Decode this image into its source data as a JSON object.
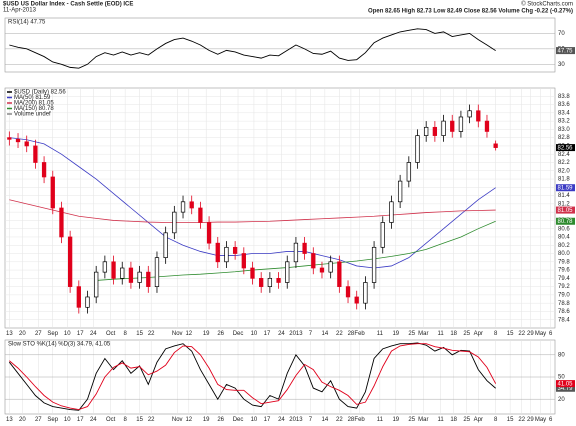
{
  "header": {
    "title": "$USD US Dollar Index - Cash Settle (EOD) ICE",
    "date": "11-Apr-2013",
    "source": "© StockCharts.com",
    "ohlc": "Open 82.65  High 82.73  Low 82.49  Close 82.56  Volume   Chg -0.22 (-0.27%)"
  },
  "chart_data": [
    {
      "type": "line",
      "title": "RSI(14) 47.75",
      "x": [
        0,
        3,
        6,
        9,
        12,
        15,
        18,
        21,
        24,
        27,
        30,
        33,
        36,
        39,
        42,
        45,
        48,
        51,
        54,
        57,
        60,
        63,
        66,
        69,
        72,
        75,
        78,
        81,
        84,
        87,
        90,
        93,
        96,
        99,
        102,
        105,
        108,
        111,
        114,
        117,
        120,
        123,
        126,
        129,
        132,
        135,
        138,
        141,
        144,
        147,
        150,
        153,
        156,
        159,
        162,
        165,
        168
      ],
      "series": [
        {
          "color": "#000000",
          "values": [
            55,
            52,
            50,
            45,
            40,
            33,
            30,
            26,
            25,
            30,
            40,
            45,
            42,
            46,
            42,
            45,
            42,
            50,
            57,
            62,
            64,
            60,
            55,
            48,
            43,
            48,
            46,
            42,
            40,
            38,
            42,
            41,
            48,
            55,
            50,
            44,
            43,
            47,
            38,
            35,
            36,
            45,
            58,
            64,
            68,
            72,
            74,
            76,
            75,
            70,
            72,
            66,
            68,
            70,
            62,
            55,
            47.75
          ]
        }
      ],
      "xlim": [
        -1.5,
        188.5
      ],
      "ylim": [
        20,
        90
      ],
      "yticks": [
        30,
        50,
        70
      ],
      "grid": true
    },
    {
      "type": "candlestick",
      "title": "$USD (Daily) 82.56",
      "volume_label": "Volume undef",
      "up_color": "#000000",
      "down_color": "#e0001b",
      "x": [
        0,
        3,
        6,
        9,
        12,
        15,
        18,
        21,
        24,
        27,
        30,
        33,
        36,
        39,
        42,
        45,
        48,
        51,
        54,
        57,
        60,
        63,
        66,
        69,
        72,
        75,
        78,
        81,
        84,
        87,
        90,
        93,
        96,
        99,
        102,
        105,
        108,
        111,
        114,
        117,
        120,
        123,
        126,
        129,
        132,
        135,
        138,
        141,
        144,
        147,
        150,
        153,
        156,
        159,
        162,
        165,
        168
      ],
      "open": [
        82.8,
        82.76,
        82.7,
        82.6,
        82.2,
        81.85,
        81.1,
        80.4,
        79.2,
        78.7,
        78.95,
        79.55,
        79.8,
        79.4,
        79.65,
        79.3,
        79.55,
        79.2,
        79.9,
        80.5,
        81.0,
        81.25,
        81.1,
        80.75,
        80.25,
        79.8,
        80.15,
        80.0,
        79.65,
        79.4,
        79.2,
        79.4,
        79.3,
        79.8,
        80.25,
        80.0,
        79.65,
        79.55,
        79.8,
        79.2,
        78.95,
        78.8,
        79.3,
        80.15,
        80.75,
        81.25,
        81.75,
        82.2,
        82.85,
        83.05,
        82.85,
        83.2,
        82.95,
        83.3,
        83.45,
        83.2,
        82.65
      ],
      "high": [
        82.95,
        82.91,
        82.85,
        82.75,
        82.35,
        82.0,
        81.25,
        80.55,
        79.35,
        79.1,
        79.7,
        79.95,
        79.95,
        79.8,
        79.8,
        79.7,
        79.7,
        80.05,
        80.65,
        81.15,
        81.4,
        81.4,
        81.25,
        80.9,
        80.4,
        80.3,
        80.3,
        80.15,
        79.8,
        79.55,
        79.55,
        79.55,
        79.95,
        80.4,
        80.4,
        80.15,
        79.8,
        79.95,
        79.95,
        79.35,
        79.1,
        79.45,
        80.3,
        80.9,
        81.4,
        81.9,
        82.35,
        83.0,
        83.2,
        83.2,
        83.35,
        83.35,
        83.45,
        83.6,
        83.6,
        83.35,
        82.73
      ],
      "low": [
        82.61,
        82.55,
        82.45,
        82.05,
        81.7,
        80.95,
        80.25,
        79.05,
        78.55,
        78.55,
        78.8,
        79.4,
        79.25,
        79.25,
        79.15,
        79.15,
        79.05,
        79.05,
        79.75,
        80.35,
        80.85,
        80.95,
        80.6,
        80.1,
        79.65,
        79.65,
        79.85,
        79.5,
        79.25,
        79.05,
        79.05,
        79.15,
        79.15,
        79.65,
        79.85,
        79.5,
        79.4,
        79.4,
        79.05,
        78.8,
        78.65,
        78.65,
        79.15,
        80.0,
        80.6,
        81.1,
        81.6,
        82.05,
        82.7,
        82.7,
        82.7,
        82.8,
        82.8,
        83.15,
        83.05,
        82.8,
        82.49
      ],
      "close": [
        82.76,
        82.7,
        82.6,
        82.2,
        81.85,
        81.1,
        80.4,
        79.2,
        78.7,
        78.95,
        79.55,
        79.8,
        79.4,
        79.65,
        79.3,
        79.55,
        79.2,
        79.9,
        80.5,
        81.0,
        81.25,
        81.1,
        80.75,
        80.25,
        79.8,
        80.15,
        80.0,
        79.65,
        79.4,
        79.2,
        79.4,
        79.3,
        79.8,
        80.25,
        80.0,
        79.65,
        79.55,
        79.8,
        79.2,
        78.95,
        78.8,
        79.3,
        80.15,
        80.75,
        81.25,
        81.75,
        82.2,
        82.85,
        83.05,
        82.85,
        83.2,
        82.95,
        83.3,
        83.45,
        83.2,
        82.95,
        82.56
      ],
      "overlays": [
        {
          "name": "MA(50) 81.59",
          "color": "#3b3bc4",
          "x": [
            0,
            6,
            12,
            18,
            24,
            30,
            36,
            42,
            48,
            54,
            60,
            66,
            72,
            78,
            84,
            90,
            96,
            102,
            108,
            114,
            120,
            126,
            132,
            138,
            144,
            150,
            156,
            162,
            168
          ],
          "values": [
            82.8,
            82.75,
            82.65,
            82.4,
            82.1,
            81.8,
            81.45,
            81.1,
            80.75,
            80.4,
            80.2,
            80.05,
            79.95,
            79.95,
            80.0,
            80.0,
            80.05,
            80.05,
            79.95,
            79.85,
            79.7,
            79.65,
            79.7,
            79.9,
            80.25,
            80.6,
            80.95,
            81.3,
            81.59
          ]
        },
        {
          "name": "MA(200) 81.05",
          "color": "#d0304a",
          "x": [
            0,
            6,
            12,
            18,
            24,
            30,
            36,
            42,
            48,
            54,
            60,
            66,
            72,
            78,
            84,
            90,
            96,
            102,
            108,
            114,
            120,
            126,
            132,
            138,
            144,
            150,
            156,
            162,
            168
          ],
          "values": [
            81.3,
            81.2,
            81.1,
            81.0,
            80.9,
            80.85,
            80.8,
            80.78,
            80.76,
            80.75,
            80.75,
            80.75,
            80.76,
            80.76,
            80.77,
            80.78,
            80.8,
            80.82,
            80.84,
            80.86,
            80.88,
            80.9,
            80.93,
            80.96,
            80.99,
            81.01,
            81.03,
            81.04,
            81.05
          ]
        },
        {
          "name": "MA(150) 80.78",
          "color": "#2e8b2e",
          "x": [
            30,
            36,
            42,
            48,
            54,
            60,
            66,
            72,
            78,
            84,
            90,
            96,
            102,
            108,
            114,
            120,
            126,
            132,
            138,
            144,
            150,
            156,
            162,
            168
          ],
          "values": [
            79.35,
            79.38,
            79.4,
            79.42,
            79.45,
            79.48,
            79.5,
            79.53,
            79.56,
            79.6,
            79.63,
            79.66,
            79.7,
            79.74,
            79.78,
            79.82,
            79.87,
            79.93,
            80.0,
            80.1,
            80.25,
            80.4,
            80.6,
            80.78
          ]
        }
      ],
      "xlim": [
        -1.5,
        188.5
      ],
      "ylim": [
        78.2,
        84.0
      ],
      "yticks": [
        78.4,
        78.6,
        78.8,
        {
          "value": 79,
          "label": "79.0"
        },
        79.2,
        79.4,
        79.6,
        79.8,
        {
          "value": 80,
          "label": "80.0"
        },
        80.2,
        80.4,
        80.6,
        80.8,
        {
          "value": 81,
          "label": "81.0"
        },
        81.2,
        81.4,
        81.6,
        81.8,
        {
          "value": 82,
          "label": "82.0"
        },
        82.2,
        82.4,
        82.6,
        82.8,
        {
          "value": 83,
          "label": "83.0"
        },
        83.2,
        83.4,
        83.6,
        83.8
      ],
      "xticks": [
        {
          "value": 0,
          "label": "13"
        },
        {
          "value": 4.5,
          "label": "20"
        },
        {
          "value": 10,
          "label": "27"
        },
        {
          "value": 15,
          "label": "Sep"
        },
        {
          "value": 20,
          "label": "10"
        },
        {
          "value": 24.5,
          "label": "17"
        },
        {
          "value": 29,
          "label": "24"
        },
        {
          "value": 35,
          "label": "Oct"
        },
        {
          "value": 40,
          "label": "8"
        },
        {
          "value": 45,
          "label": "15"
        },
        {
          "value": 49,
          "label": "22"
        },
        {
          "value": 58,
          "label": "Nov"
        },
        {
          "value": 62,
          "label": "12"
        },
        {
          "value": 68,
          "label": "19"
        },
        {
          "value": 73,
          "label": "26"
        },
        {
          "value": 79,
          "label": "Dec"
        },
        {
          "value": 84.5,
          "label": "10"
        },
        {
          "value": 89,
          "label": "17"
        },
        {
          "value": 94,
          "label": "24"
        },
        {
          "value": 99,
          "label": "2013"
        },
        {
          "value": 104,
          "label": "7"
        },
        {
          "value": 109,
          "label": "14"
        },
        {
          "value": 114,
          "label": "22"
        },
        {
          "value": 118,
          "label": "28"
        },
        {
          "value": 121,
          "label": "Feb"
        },
        {
          "value": 128,
          "label": "11"
        },
        {
          "value": 133.5,
          "label": "19"
        },
        {
          "value": 139,
          "label": "25"
        },
        {
          "value": 143,
          "label": "Mar"
        },
        {
          "value": 149,
          "label": "11"
        },
        {
          "value": 153.5,
          "label": "18"
        },
        {
          "value": 158,
          "label": "25"
        },
        {
          "value": 162,
          "label": "Apr"
        },
        {
          "value": 168,
          "label": "8"
        },
        {
          "value": 173,
          "label": "15"
        },
        {
          "value": 177,
          "label": "22"
        },
        {
          "value": 180,
          "label": "29"
        },
        {
          "value": 183.5,
          "label": "May"
        },
        {
          "value": 187,
          "label": "6"
        }
      ],
      "grid": true
    },
    {
      "type": "line",
      "title": "Slow STO %K(14) %D(3) 34.79, 41.05",
      "x": [
        0,
        3,
        6,
        9,
        12,
        15,
        18,
        21,
        24,
        27,
        30,
        33,
        36,
        39,
        42,
        45,
        48,
        51,
        54,
        57,
        60,
        63,
        66,
        69,
        72,
        75,
        78,
        81,
        84,
        87,
        90,
        93,
        96,
        99,
        102,
        105,
        108,
        111,
        114,
        117,
        120,
        123,
        126,
        129,
        132,
        135,
        138,
        141,
        144,
        147,
        150,
        153,
        156,
        159,
        162,
        165,
        168
      ],
      "series": [
        {
          "color": "#000000",
          "values": [
            70,
            55,
            40,
            25,
            15,
            10,
            8,
            6,
            5,
            20,
            55,
            75,
            60,
            72,
            55,
            65,
            40,
            70,
            88,
            92,
            95,
            85,
            60,
            40,
            20,
            40,
            35,
            20,
            12,
            10,
            25,
            20,
            55,
            80,
            65,
            35,
            30,
            45,
            20,
            10,
            8,
            30,
            75,
            88,
            92,
            95,
            95,
            96,
            93,
            85,
            90,
            80,
            86,
            85,
            60,
            45,
            34.79
          ]
        },
        {
          "color": "#e0001b",
          "values": [
            72,
            62,
            50,
            37,
            25,
            16,
            11,
            8,
            6,
            10,
            27,
            50,
            63,
            69,
            62,
            64,
            53,
            58,
            66,
            83,
            92,
            91,
            80,
            62,
            40,
            33,
            32,
            32,
            22,
            14,
            16,
            18,
            33,
            52,
            67,
            60,
            43,
            37,
            32,
            25,
            13,
            16,
            38,
            64,
            85,
            92,
            94,
            95,
            95,
            91,
            89,
            86,
            85,
            84,
            77,
            63,
            41.05
          ]
        }
      ],
      "xlim": [
        -1.5,
        188.5
      ],
      "ylim": [
        0,
        100
      ],
      "yticks": [
        20,
        50,
        80
      ],
      "xticks": [
        {
          "value": 0,
          "label": "13"
        },
        {
          "value": 4.5,
          "label": "20"
        },
        {
          "value": 10,
          "label": "27"
        },
        {
          "value": 15,
          "label": "Sep"
        },
        {
          "value": 20,
          "label": "10"
        },
        {
          "value": 24.5,
          "label": "17"
        },
        {
          "value": 29,
          "label": "24"
        },
        {
          "value": 35,
          "label": "Oct"
        },
        {
          "value": 40,
          "label": "8"
        },
        {
          "value": 45,
          "label": "15"
        },
        {
          "value": 49,
          "label": "22"
        },
        {
          "value": 58,
          "label": "Nov"
        },
        {
          "value": 62,
          "label": "12"
        },
        {
          "value": 68,
          "label": "19"
        },
        {
          "value": 73,
          "label": "26"
        },
        {
          "value": 79,
          "label": "Dec"
        },
        {
          "value": 84.5,
          "label": "10"
        },
        {
          "value": 89,
          "label": "17"
        },
        {
          "value": 94,
          "label": "24"
        },
        {
          "value": 99,
          "label": "2013"
        },
        {
          "value": 104,
          "label": "7"
        },
        {
          "value": 109,
          "label": "14"
        },
        {
          "value": 114,
          "label": "22"
        },
        {
          "value": 118,
          "label": "28"
        },
        {
          "value": 121,
          "label": "Feb"
        },
        {
          "value": 128,
          "label": "11"
        },
        {
          "value": 133.5,
          "label": "19"
        },
        {
          "value": 139,
          "label": "25"
        },
        {
          "value": 143,
          "label": "Mar"
        },
        {
          "value": 149,
          "label": "11"
        },
        {
          "value": 153.5,
          "label": "18"
        },
        {
          "value": 158,
          "label": "25"
        },
        {
          "value": 162,
          "label": "Apr"
        },
        {
          "value": 168,
          "label": "8"
        },
        {
          "value": 173,
          "label": "15"
        },
        {
          "value": 177,
          "label": "22"
        },
        {
          "value": 180,
          "label": "29"
        },
        {
          "value": 183.5,
          "label": "May"
        },
        {
          "value": 187,
          "label": "6"
        }
      ],
      "grid": true
    }
  ]
}
